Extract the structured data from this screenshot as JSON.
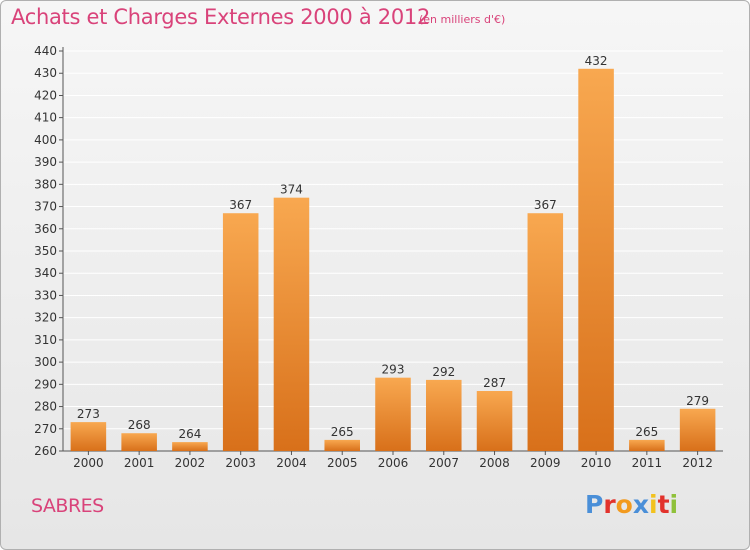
{
  "header": {
    "title": "Achats et Charges Externes 2000 à 2012",
    "subtitle": "(en milliers d'€)"
  },
  "footer": {
    "commune": "SABRES",
    "logo_text": "Proxiti",
    "logo_colors": [
      "#4a8fd8",
      "#e2322c",
      "#f29a1e",
      "#4a8fd8",
      "#f2c21e",
      "#e2322c",
      "#8fc13a"
    ]
  },
  "colors": {
    "bar_top": "#f8a850",
    "bar_bottom": "#d8701a",
    "accent": "#d9437a",
    "grid": "#ffffff"
  },
  "chart_data": {
    "type": "bar",
    "categories": [
      "2000",
      "2001",
      "2002",
      "2003",
      "2004",
      "2005",
      "2006",
      "2007",
      "2008",
      "2009",
      "2010",
      "2011",
      "2012"
    ],
    "values": [
      273,
      268,
      264,
      367,
      374,
      265,
      293,
      292,
      287,
      367,
      432,
      265,
      279
    ],
    "ylim": [
      260,
      440
    ],
    "ytick_step": 10,
    "grid": true,
    "data_labels": true,
    "title": "Achats et Charges Externes 2000 à 2012",
    "xlabel": "",
    "ylabel": ""
  }
}
